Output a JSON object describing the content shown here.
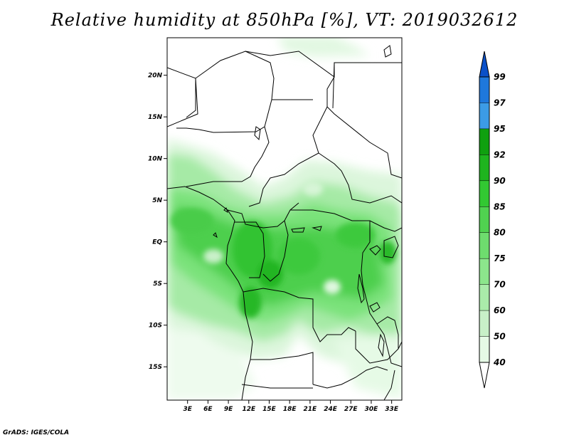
{
  "title": "Relative humidity at 850hPa [%], VT: 2019032612",
  "credit": "GrADS: IGES/COLA",
  "map": {
    "lat_labels": [
      "20N",
      "15N",
      "10N",
      "5N",
      "EQ",
      "5S",
      "10S",
      "15S"
    ],
    "lon_labels": [
      "3E",
      "6E",
      "9E",
      "12E",
      "15E",
      "18E",
      "21E",
      "24E",
      "27E",
      "30E",
      "33E"
    ],
    "lon_range": [
      0,
      34.5
    ],
    "lat_range": [
      -19,
      24.5
    ]
  },
  "colorbar": {
    "levels": [
      "40",
      "50",
      "60",
      "70",
      "75",
      "80",
      "85",
      "90",
      "92",
      "95",
      "97",
      "99"
    ],
    "colors": [
      "#ffffff",
      "#e6fae6",
      "#c8f0c8",
      "#aaebaa",
      "#8ce68c",
      "#6edc6e",
      "#50d250",
      "#32c832",
      "#1eb41e",
      "#0fa00f",
      "#3c9be6",
      "#1e78dc",
      "#0a50c8"
    ]
  }
}
